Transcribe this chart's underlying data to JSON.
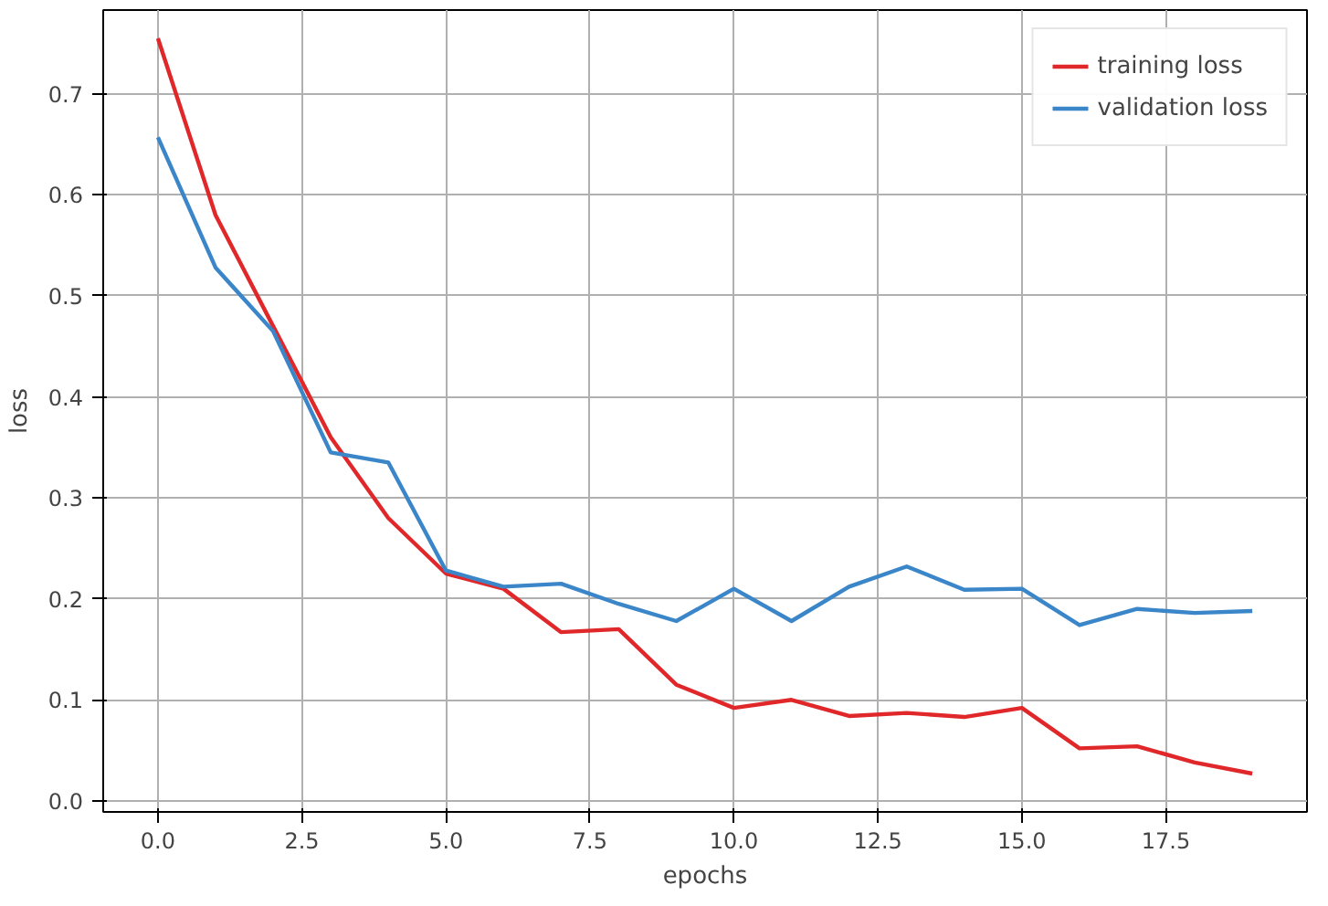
{
  "chart_data": {
    "type": "line",
    "xlabel": "epochs",
    "ylabel": "loss",
    "x": [
      0,
      1,
      2,
      3,
      4,
      5,
      6,
      7,
      8,
      9,
      10,
      11,
      12,
      13,
      14,
      15,
      16,
      17,
      18,
      19
    ],
    "series": [
      {
        "name": "training loss",
        "color": "#e0282a",
        "values": [
          0.755,
          0.58,
          0.47,
          0.36,
          0.28,
          0.225,
          0.21,
          0.167,
          0.17,
          0.115,
          0.092,
          0.1,
          0.084,
          0.087,
          0.083,
          0.092,
          0.052,
          0.054,
          0.038,
          0.027
        ]
      },
      {
        "name": "validation loss",
        "color": "#3a86c8",
        "values": [
          0.657,
          0.528,
          0.465,
          0.345,
          0.335,
          0.228,
          0.212,
          0.215,
          0.195,
          0.178,
          0.21,
          0.178,
          0.212,
          0.232,
          0.209,
          0.21,
          0.174,
          0.19,
          0.186,
          0.188
        ]
      }
    ],
    "xlim": [
      -0.95,
      19.95
    ],
    "ylim": [
      -0.011,
      0.783
    ],
    "xticks": [
      {
        "value": 0,
        "label": "0.0"
      },
      {
        "value": 2.5,
        "label": "2.5"
      },
      {
        "value": 5,
        "label": "5.0"
      },
      {
        "value": 7.5,
        "label": "7.5"
      },
      {
        "value": 10,
        "label": "10.0"
      },
      {
        "value": 12.5,
        "label": "12.5"
      },
      {
        "value": 15,
        "label": "15.0"
      },
      {
        "value": 17.5,
        "label": "17.5"
      }
    ],
    "yticks": [
      {
        "value": 0,
        "label": "0.0"
      },
      0.1,
      0.2,
      0.3,
      0.4,
      0.5,
      0.6,
      0.7
    ],
    "grid": true,
    "legend": "top right",
    "line_style": "solid",
    "marker": "none"
  }
}
